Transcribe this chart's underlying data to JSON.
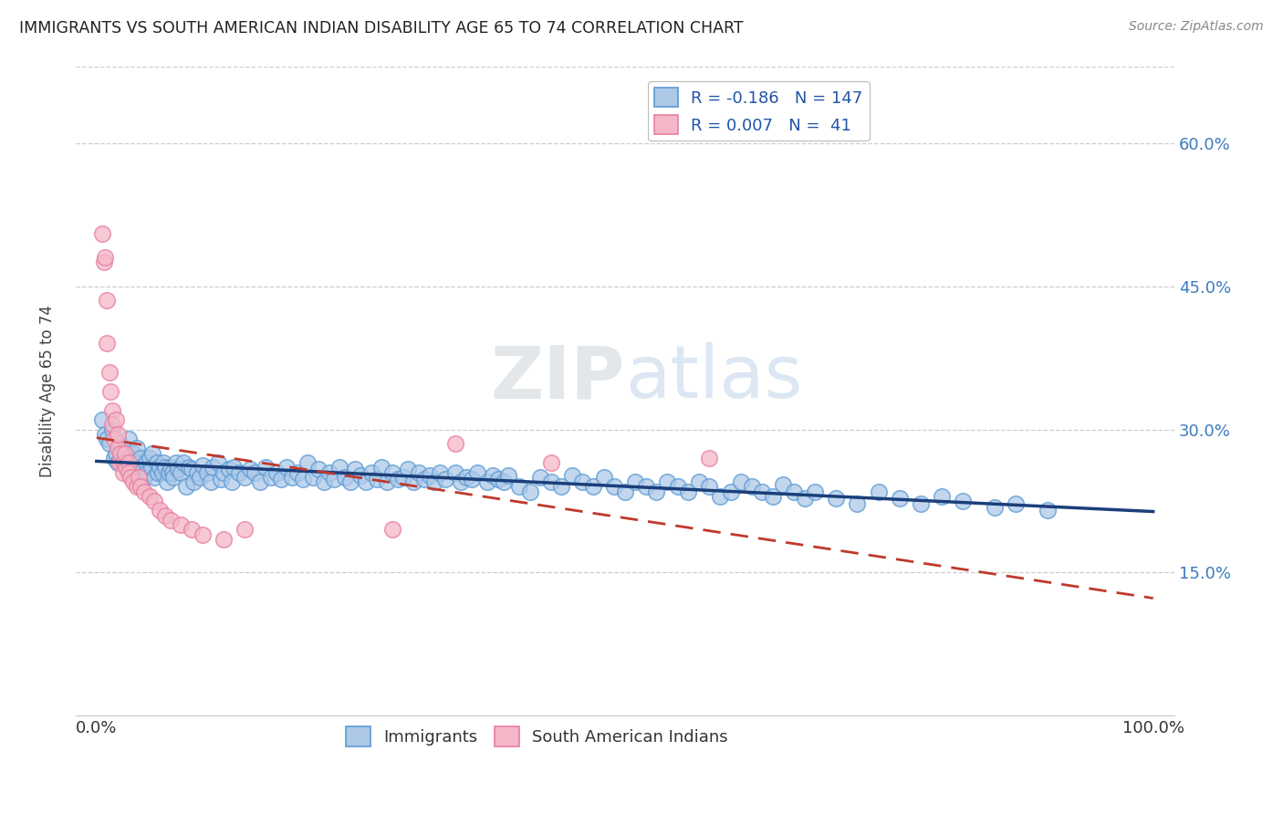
{
  "title": "IMMIGRANTS VS SOUTH AMERICAN INDIAN DISABILITY AGE 65 TO 74 CORRELATION CHART",
  "source": "Source: ZipAtlas.com",
  "ylabel": "Disability Age 65 to 74",
  "xlim": [
    -0.02,
    1.02
  ],
  "ylim": [
    0.0,
    0.68
  ],
  "yticks": [
    0.15,
    0.3,
    0.45,
    0.6
  ],
  "ytick_labels": [
    "15.0%",
    "30.0%",
    "45.0%",
    "60.0%"
  ],
  "xticks": [
    0.0,
    1.0
  ],
  "xtick_labels": [
    "0.0%",
    "100.0%"
  ],
  "immigrants_color": "#aec9e8",
  "immigrants_edge_color": "#5b9bd5",
  "sa_indians_color": "#f4b8c8",
  "sa_indians_edge_color": "#e87fa0",
  "trend_immigrants_color": "#1a3f7a",
  "trend_sa_color": "#c0392b",
  "R_immigrants": -0.186,
  "N_immigrants": 147,
  "R_sa": 0.007,
  "N_sa": 41,
  "watermark": "ZIPatlas",
  "immigrants_x": [
    0.005,
    0.008,
    0.01,
    0.012,
    0.015,
    0.017,
    0.018,
    0.02,
    0.022,
    0.025,
    0.027,
    0.03,
    0.032,
    0.033,
    0.035,
    0.037,
    0.038,
    0.04,
    0.042,
    0.043,
    0.045,
    0.047,
    0.048,
    0.05,
    0.052,
    0.053,
    0.055,
    0.057,
    0.058,
    0.06,
    0.062,
    0.063,
    0.065,
    0.067,
    0.068,
    0.07,
    0.072,
    0.073,
    0.075,
    0.077,
    0.08,
    0.082,
    0.085,
    0.087,
    0.09,
    0.092,
    0.095,
    0.098,
    0.1,
    0.105,
    0.108,
    0.11,
    0.115,
    0.118,
    0.12,
    0.125,
    0.128,
    0.13,
    0.135,
    0.14,
    0.145,
    0.15,
    0.155,
    0.16,
    0.165,
    0.17,
    0.175,
    0.18,
    0.185,
    0.19,
    0.195,
    0.2,
    0.205,
    0.21,
    0.215,
    0.22,
    0.225,
    0.23,
    0.235,
    0.24,
    0.245,
    0.25,
    0.255,
    0.26,
    0.265,
    0.27,
    0.275,
    0.28,
    0.285,
    0.29,
    0.295,
    0.3,
    0.305,
    0.31,
    0.315,
    0.32,
    0.325,
    0.33,
    0.34,
    0.345,
    0.35,
    0.355,
    0.36,
    0.37,
    0.375,
    0.38,
    0.385,
    0.39,
    0.4,
    0.41,
    0.42,
    0.43,
    0.44,
    0.45,
    0.46,
    0.47,
    0.48,
    0.49,
    0.5,
    0.51,
    0.52,
    0.53,
    0.54,
    0.55,
    0.56,
    0.57,
    0.58,
    0.59,
    0.6,
    0.61,
    0.62,
    0.63,
    0.64,
    0.65,
    0.66,
    0.67,
    0.68,
    0.7,
    0.72,
    0.74,
    0.76,
    0.78,
    0.8,
    0.82,
    0.85,
    0.87,
    0.9
  ],
  "immigrants_y": [
    0.31,
    0.295,
    0.29,
    0.285,
    0.3,
    0.27,
    0.275,
    0.265,
    0.285,
    0.28,
    0.275,
    0.29,
    0.26,
    0.27,
    0.275,
    0.265,
    0.28,
    0.255,
    0.27,
    0.26,
    0.25,
    0.265,
    0.255,
    0.27,
    0.26,
    0.275,
    0.25,
    0.265,
    0.255,
    0.26,
    0.255,
    0.265,
    0.26,
    0.245,
    0.255,
    0.26,
    0.255,
    0.25,
    0.265,
    0.258,
    0.255,
    0.265,
    0.24,
    0.26,
    0.258,
    0.245,
    0.255,
    0.25,
    0.262,
    0.255,
    0.245,
    0.26,
    0.265,
    0.248,
    0.255,
    0.258,
    0.245,
    0.26,
    0.255,
    0.25,
    0.258,
    0.255,
    0.245,
    0.26,
    0.25,
    0.255,
    0.248,
    0.26,
    0.25,
    0.255,
    0.248,
    0.265,
    0.25,
    0.258,
    0.245,
    0.255,
    0.248,
    0.26,
    0.25,
    0.245,
    0.258,
    0.252,
    0.245,
    0.255,
    0.248,
    0.26,
    0.245,
    0.255,
    0.248,
    0.25,
    0.258,
    0.245,
    0.255,
    0.248,
    0.252,
    0.245,
    0.255,
    0.248,
    0.255,
    0.245,
    0.25,
    0.248,
    0.255,
    0.245,
    0.252,
    0.248,
    0.245,
    0.252,
    0.24,
    0.235,
    0.25,
    0.245,
    0.24,
    0.252,
    0.245,
    0.24,
    0.25,
    0.24,
    0.235,
    0.245,
    0.24,
    0.235,
    0.245,
    0.24,
    0.235,
    0.245,
    0.24,
    0.23,
    0.235,
    0.245,
    0.24,
    0.235,
    0.23,
    0.242,
    0.235,
    0.228,
    0.235,
    0.228,
    0.222,
    0.235,
    0.228,
    0.222,
    0.23,
    0.225,
    0.218,
    0.222,
    0.215
  ],
  "sa_x": [
    0.005,
    0.007,
    0.008,
    0.01,
    0.01,
    0.012,
    0.013,
    0.015,
    0.015,
    0.017,
    0.018,
    0.02,
    0.02,
    0.022,
    0.023,
    0.025,
    0.025,
    0.027,
    0.028,
    0.03,
    0.03,
    0.032,
    0.035,
    0.038,
    0.04,
    0.042,
    0.045,
    0.05,
    0.055,
    0.06,
    0.065,
    0.07,
    0.08,
    0.09,
    0.1,
    0.12,
    0.14,
    0.28,
    0.34,
    0.43,
    0.58
  ],
  "sa_y": [
    0.505,
    0.475,
    0.48,
    0.435,
    0.39,
    0.36,
    0.34,
    0.32,
    0.305,
    0.29,
    0.31,
    0.28,
    0.295,
    0.265,
    0.275,
    0.265,
    0.255,
    0.275,
    0.26,
    0.265,
    0.255,
    0.25,
    0.245,
    0.24,
    0.25,
    0.24,
    0.235,
    0.23,
    0.225,
    0.215,
    0.21,
    0.205,
    0.2,
    0.195,
    0.19,
    0.185,
    0.195,
    0.195,
    0.285,
    0.265,
    0.27
  ]
}
